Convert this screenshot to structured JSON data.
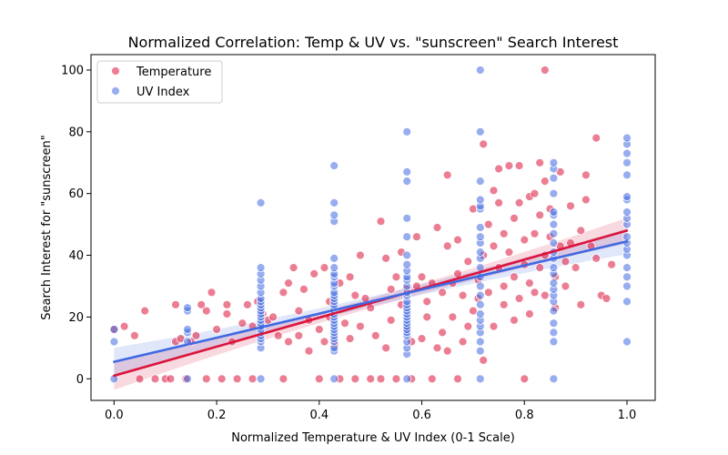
{
  "chart_data": {
    "type": "scatter",
    "title": "Normalized Correlation: Temp & UV vs. \"sunscreen\" Search Interest",
    "xlabel": "Normalized Temperature & UV Index (0-1 Scale)",
    "ylabel": "Search Interest for \"sunscreen\"",
    "xlim": [
      -0.045,
      1.055
    ],
    "ylim": [
      -7,
      105
    ],
    "xticks": [
      "0.0",
      "0.2",
      "0.4",
      "0.6",
      "0.8",
      "1.0"
    ],
    "xtick_values": [
      0,
      0.2,
      0.4,
      0.6,
      0.8,
      1.0
    ],
    "yticks": [
      "0",
      "20",
      "40",
      "60",
      "80",
      "100"
    ],
    "ytick_values": [
      0,
      20,
      40,
      60,
      80,
      100
    ],
    "grid": false,
    "legend_position": "top-left",
    "series": [
      {
        "name": "Temperature",
        "color": "#dc143c",
        "regression": {
          "x": [
            0,
            1
          ],
          "y": [
            1.0,
            48.0
          ]
        },
        "points": [
          [
            0.0,
            16
          ],
          [
            0.02,
            17
          ],
          [
            0.04,
            14
          ],
          [
            0.05,
            0
          ],
          [
            0.06,
            22
          ],
          [
            0.08,
            0
          ],
          [
            0.1,
            0
          ],
          [
            0.11,
            0
          ],
          [
            0.12,
            24
          ],
          [
            0.12,
            12
          ],
          [
            0.13,
            13
          ],
          [
            0.14,
            0
          ],
          [
            0.15,
            12
          ],
          [
            0.16,
            14
          ],
          [
            0.17,
            24
          ],
          [
            0.18,
            0
          ],
          [
            0.18,
            22
          ],
          [
            0.19,
            28
          ],
          [
            0.2,
            16
          ],
          [
            0.21,
            0
          ],
          [
            0.22,
            21
          ],
          [
            0.22,
            24
          ],
          [
            0.23,
            12
          ],
          [
            0.24,
            0
          ],
          [
            0.25,
            18
          ],
          [
            0.26,
            24
          ],
          [
            0.27,
            0
          ],
          [
            0.27,
            17
          ],
          [
            0.28,
            25
          ],
          [
            0.29,
            21
          ],
          [
            0.3,
            19
          ],
          [
            0.31,
            20
          ],
          [
            0.32,
            14
          ],
          [
            0.33,
            28
          ],
          [
            0.33,
            0
          ],
          [
            0.34,
            12
          ],
          [
            0.34,
            31
          ],
          [
            0.35,
            36
          ],
          [
            0.36,
            22
          ],
          [
            0.36,
            14
          ],
          [
            0.37,
            29
          ],
          [
            0.38,
            9
          ],
          [
            0.38,
            19
          ],
          [
            0.39,
            34
          ],
          [
            0.4,
            16
          ],
          [
            0.4,
            0
          ],
          [
            0.41,
            36
          ],
          [
            0.41,
            12
          ],
          [
            0.42,
            25
          ],
          [
            0.42,
            20
          ],
          [
            0.43,
            11
          ],
          [
            0.44,
            31
          ],
          [
            0.44,
            0
          ],
          [
            0.45,
            18
          ],
          [
            0.46,
            33
          ],
          [
            0.46,
            13
          ],
          [
            0.47,
            27
          ],
          [
            0.47,
            0
          ],
          [
            0.48,
            40
          ],
          [
            0.48,
            17
          ],
          [
            0.49,
            26
          ],
          [
            0.5,
            0
          ],
          [
            0.5,
            23
          ],
          [
            0.51,
            14
          ],
          [
            0.52,
            0
          ],
          [
            0.52,
            51
          ],
          [
            0.53,
            39
          ],
          [
            0.53,
            10
          ],
          [
            0.54,
            29
          ],
          [
            0.54,
            19
          ],
          [
            0.55,
            0
          ],
          [
            0.55,
            33
          ],
          [
            0.56,
            24
          ],
          [
            0.56,
            41
          ],
          [
            0.57,
            16
          ],
          [
            0.57,
            29
          ],
          [
            0.58,
            12
          ],
          [
            0.58,
            0
          ],
          [
            0.59,
            30
          ],
          [
            0.59,
            46
          ],
          [
            0.6,
            13
          ],
          [
            0.6,
            33
          ],
          [
            0.61,
            20
          ],
          [
            0.61,
            25
          ],
          [
            0.62,
            0
          ],
          [
            0.62,
            31
          ],
          [
            0.63,
            10
          ],
          [
            0.63,
            49
          ],
          [
            0.64,
            28
          ],
          [
            0.64,
            15
          ],
          [
            0.65,
            66
          ],
          [
            0.65,
            43
          ],
          [
            0.65,
            9
          ],
          [
            0.66,
            31
          ],
          [
            0.66,
            20
          ],
          [
            0.67,
            34
          ],
          [
            0.67,
            0
          ],
          [
            0.67,
            45
          ],
          [
            0.68,
            12
          ],
          [
            0.68,
            27
          ],
          [
            0.69,
            17
          ],
          [
            0.69,
            38
          ],
          [
            0.7,
            55
          ],
          [
            0.7,
            22
          ],
          [
            0.71,
            26
          ],
          [
            0.71,
            32
          ],
          [
            0.72,
            40
          ],
          [
            0.72,
            76
          ],
          [
            0.72,
            6
          ],
          [
            0.73,
            50
          ],
          [
            0.73,
            28
          ],
          [
            0.74,
            61
          ],
          [
            0.74,
            43
          ],
          [
            0.74,
            17
          ],
          [
            0.75,
            68
          ],
          [
            0.75,
            36
          ],
          [
            0.75,
            57
          ],
          [
            0.76,
            47
          ],
          [
            0.76,
            24
          ],
          [
            0.76,
            30
          ],
          [
            0.77,
            69
          ],
          [
            0.77,
            41
          ],
          [
            0.78,
            52
          ],
          [
            0.78,
            33
          ],
          [
            0.78,
            19
          ],
          [
            0.79,
            69
          ],
          [
            0.79,
            57
          ],
          [
            0.79,
            26
          ],
          [
            0.8,
            45
          ],
          [
            0.8,
            0
          ],
          [
            0.8,
            37
          ],
          [
            0.81,
            59
          ],
          [
            0.81,
            21
          ],
          [
            0.81,
            31
          ],
          [
            0.82,
            60
          ],
          [
            0.82,
            47
          ],
          [
            0.82,
            28
          ],
          [
            0.83,
            70
          ],
          [
            0.83,
            53
          ],
          [
            0.83,
            36
          ],
          [
            0.84,
            100
          ],
          [
            0.84,
            64
          ],
          [
            0.84,
            40
          ],
          [
            0.84,
            27
          ],
          [
            0.85,
            55
          ],
          [
            0.85,
            46
          ],
          [
            0.86,
            33
          ],
          [
            0.86,
            23
          ],
          [
            0.87,
            67
          ],
          [
            0.87,
            43
          ],
          [
            0.88,
            38
          ],
          [
            0.88,
            30
          ],
          [
            0.89,
            56
          ],
          [
            0.89,
            44
          ],
          [
            0.9,
            36
          ],
          [
            0.91,
            48
          ],
          [
            0.91,
            24
          ],
          [
            0.92,
            66
          ],
          [
            0.92,
            58
          ],
          [
            0.93,
            43
          ],
          [
            0.94,
            78
          ],
          [
            0.94,
            39
          ],
          [
            0.95,
            27
          ],
          [
            0.96,
            26
          ],
          [
            0.97,
            37
          ]
        ]
      },
      {
        "name": "UV Index",
        "color": "#4169e1",
        "regression": {
          "x": [
            0,
            1
          ],
          "y": [
            5.5,
            44.5
          ]
        },
        "points": [
          [
            0.0,
            0
          ],
          [
            0.0,
            12
          ],
          [
            0.0,
            16
          ],
          [
            0.143,
            0
          ],
          [
            0.143,
            12
          ],
          [
            0.143,
            15
          ],
          [
            0.143,
            16
          ],
          [
            0.143,
            22
          ],
          [
            0.143,
            23
          ],
          [
            0.286,
            0
          ],
          [
            0.286,
            10
          ],
          [
            0.286,
            12
          ],
          [
            0.286,
            13
          ],
          [
            0.286,
            14
          ],
          [
            0.286,
            15
          ],
          [
            0.286,
            16
          ],
          [
            0.286,
            17
          ],
          [
            0.286,
            18
          ],
          [
            0.286,
            19
          ],
          [
            0.286,
            20
          ],
          [
            0.286,
            21
          ],
          [
            0.286,
            22
          ],
          [
            0.286,
            23
          ],
          [
            0.286,
            24
          ],
          [
            0.286,
            25
          ],
          [
            0.286,
            26
          ],
          [
            0.286,
            28
          ],
          [
            0.286,
            30
          ],
          [
            0.286,
            32
          ],
          [
            0.286,
            34
          ],
          [
            0.286,
            36
          ],
          [
            0.286,
            57
          ],
          [
            0.429,
            0
          ],
          [
            0.429,
            9
          ],
          [
            0.429,
            10
          ],
          [
            0.429,
            12
          ],
          [
            0.429,
            13
          ],
          [
            0.429,
            14
          ],
          [
            0.429,
            15
          ],
          [
            0.429,
            16
          ],
          [
            0.429,
            17
          ],
          [
            0.429,
            18
          ],
          [
            0.429,
            19
          ],
          [
            0.429,
            20
          ],
          [
            0.429,
            21
          ],
          [
            0.429,
            22
          ],
          [
            0.429,
            23
          ],
          [
            0.429,
            24
          ],
          [
            0.429,
            25
          ],
          [
            0.429,
            26
          ],
          [
            0.429,
            27
          ],
          [
            0.429,
            28
          ],
          [
            0.429,
            30
          ],
          [
            0.429,
            31
          ],
          [
            0.429,
            33
          ],
          [
            0.429,
            34
          ],
          [
            0.429,
            36
          ],
          [
            0.429,
            39
          ],
          [
            0.429,
            51
          ],
          [
            0.429,
            53
          ],
          [
            0.429,
            57
          ],
          [
            0.429,
            69
          ],
          [
            0.571,
            0
          ],
          [
            0.571,
            8
          ],
          [
            0.571,
            10
          ],
          [
            0.571,
            12
          ],
          [
            0.571,
            14
          ],
          [
            0.571,
            15
          ],
          [
            0.571,
            16
          ],
          [
            0.571,
            17
          ],
          [
            0.571,
            18
          ],
          [
            0.571,
            19
          ],
          [
            0.571,
            20
          ],
          [
            0.571,
            21
          ],
          [
            0.571,
            22
          ],
          [
            0.571,
            23
          ],
          [
            0.571,
            24
          ],
          [
            0.571,
            25
          ],
          [
            0.571,
            27
          ],
          [
            0.571,
            28
          ],
          [
            0.571,
            30
          ],
          [
            0.571,
            32
          ],
          [
            0.571,
            33
          ],
          [
            0.571,
            35
          ],
          [
            0.571,
            37
          ],
          [
            0.571,
            40
          ],
          [
            0.571,
            46
          ],
          [
            0.571,
            52
          ],
          [
            0.571,
            64
          ],
          [
            0.571,
            67
          ],
          [
            0.571,
            80
          ],
          [
            0.714,
            0
          ],
          [
            0.714,
            9
          ],
          [
            0.714,
            12
          ],
          [
            0.714,
            15
          ],
          [
            0.714,
            17
          ],
          [
            0.714,
            19
          ],
          [
            0.714,
            21
          ],
          [
            0.714,
            24
          ],
          [
            0.714,
            27
          ],
          [
            0.714,
            30
          ],
          [
            0.714,
            33
          ],
          [
            0.714,
            36
          ],
          [
            0.714,
            39
          ],
          [
            0.714,
            41
          ],
          [
            0.714,
            44
          ],
          [
            0.714,
            46
          ],
          [
            0.714,
            49
          ],
          [
            0.714,
            55
          ],
          [
            0.714,
            56
          ],
          [
            0.714,
            58
          ],
          [
            0.714,
            64
          ],
          [
            0.714,
            80
          ],
          [
            0.714,
            100
          ],
          [
            0.857,
            0
          ],
          [
            0.857,
            12
          ],
          [
            0.857,
            15
          ],
          [
            0.857,
            18
          ],
          [
            0.857,
            22
          ],
          [
            0.857,
            25
          ],
          [
            0.857,
            27
          ],
          [
            0.857,
            29
          ],
          [
            0.857,
            31
          ],
          [
            0.857,
            34
          ],
          [
            0.857,
            36
          ],
          [
            0.857,
            39
          ],
          [
            0.857,
            41
          ],
          [
            0.857,
            44
          ],
          [
            0.857,
            47
          ],
          [
            0.857,
            50
          ],
          [
            0.857,
            53
          ],
          [
            0.857,
            54
          ],
          [
            0.857,
            60
          ],
          [
            0.857,
            65
          ],
          [
            0.857,
            68
          ],
          [
            0.857,
            70
          ],
          [
            1.0,
            12
          ],
          [
            1.0,
            25
          ],
          [
            1.0,
            30
          ],
          [
            1.0,
            33
          ],
          [
            1.0,
            36
          ],
          [
            1.0,
            40
          ],
          [
            1.0,
            42
          ],
          [
            1.0,
            44
          ],
          [
            1.0,
            46
          ],
          [
            1.0,
            50
          ],
          [
            1.0,
            52
          ],
          [
            1.0,
            54
          ],
          [
            1.0,
            58
          ],
          [
            1.0,
            59
          ],
          [
            1.0,
            66
          ],
          [
            1.0,
            70
          ],
          [
            1.0,
            73
          ],
          [
            1.0,
            76
          ],
          [
            1.0,
            78
          ]
        ]
      }
    ]
  }
}
